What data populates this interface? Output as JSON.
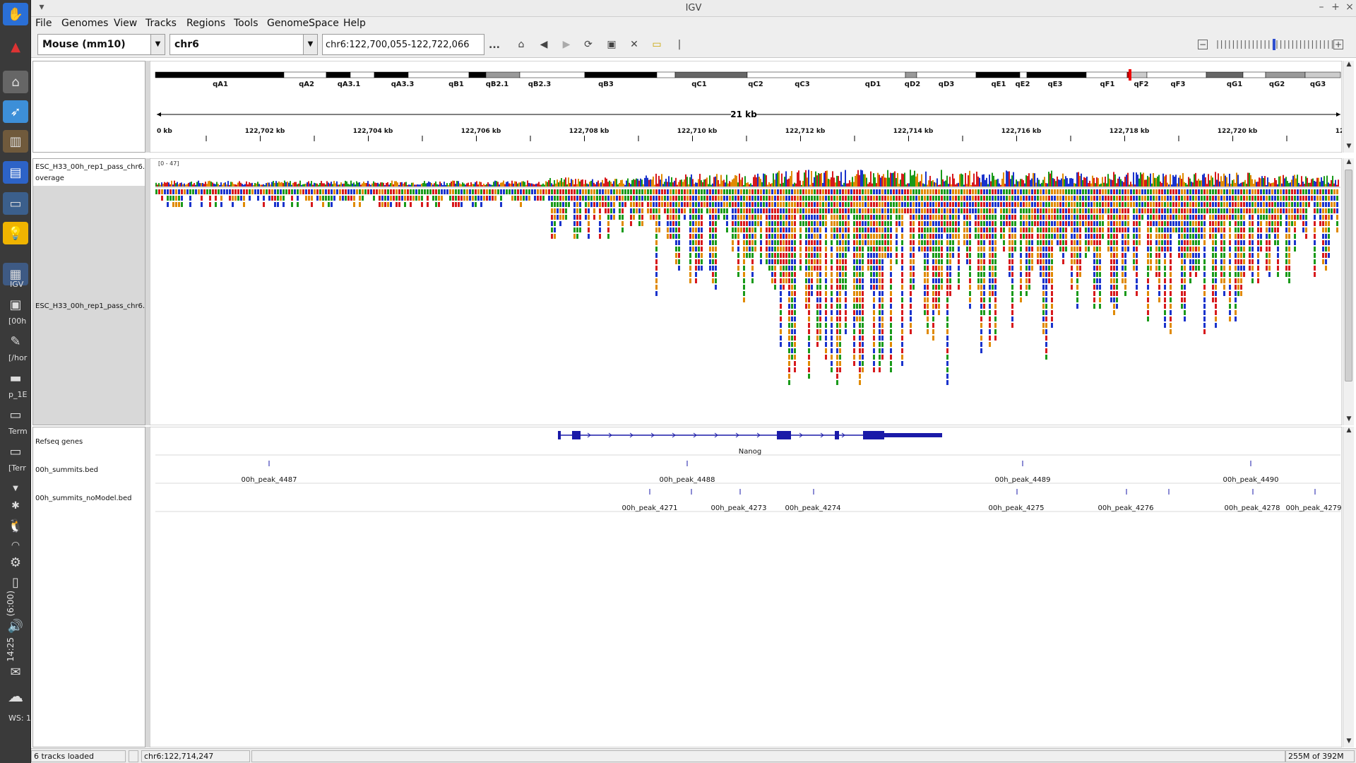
{
  "window": {
    "title": "IGV"
  },
  "menu": [
    "File",
    "Genomes",
    "View",
    "Tracks",
    "Regions",
    "Tools",
    "GenomeSpace",
    "Help"
  ],
  "toolbar": {
    "genome": "Mouse (mm10)",
    "chromosome": "chr6",
    "locus": "chr6:122,700,055-122,722,066",
    "more_label": "..."
  },
  "ideogram": {
    "bands": [
      "qA1",
      "qA2",
      "qA3.1",
      "qA3.3",
      "qB1",
      "qB2.1",
      "qB2.3",
      "qB3",
      "qC1",
      "qC2",
      "qC3",
      "qD1",
      "qD2",
      "qD3",
      "qE1",
      "qE2",
      "qE3",
      "qF1",
      "qF2",
      "qF3",
      "qG1",
      "qG2",
      "qG3"
    ]
  },
  "ruler": {
    "span_label": "21 kb",
    "tick_labels": [
      "0 kb",
      "122,702 kb",
      "122,704 kb",
      "122,706 kb",
      "122,708 kb",
      "122,710 kb",
      "122,712 kb",
      "122,714 kb",
      "122,716 kb",
      "122,718 kb",
      "122,720 kb",
      "122,7"
    ]
  },
  "data_tracks": {
    "coverage_name_line1": "ESC_H33_00h_rep1_pass_chr6.",
    "coverage_name_line2": "overage",
    "coverage_range": "[0 - 47]",
    "alignment_name": "ESC_H33_00h_rep1_pass_chr6."
  },
  "feature_tracks": {
    "refseq_name": "Refseq genes",
    "gene_name": "Nanog",
    "summits_name": "00h_summits.bed",
    "summits": [
      "00h_peak_4487",
      "00h_peak_4488",
      "00h_peak_4489",
      "00h_peak_4490"
    ],
    "nomodel_name": "00h_summits_noModel.bed",
    "nomodel": [
      "00h_peak_4271",
      "00h_peak_4273",
      "00h_peak_4274",
      "00h_peak_4275",
      "00h_peak_4276",
      "00h_peak_4278",
      "00h_peak_4279"
    ]
  },
  "status": {
    "tracks_loaded": "6 tracks loaded",
    "position": "chr6:122,714,247",
    "memory": "255M of 392M"
  },
  "dock": {
    "labels": [
      "IGV",
      "[00h",
      "[/hor",
      "p_1E",
      "Term",
      "[Terr",
      "WS: 1"
    ],
    "clock": "14:25",
    "battery": "(6:00)"
  },
  "colors": {
    "coverage": [
      "#d7191c",
      "#1a33cc",
      "#1a9a1a",
      "#e08a00"
    ],
    "feature": "#1a1aa8"
  }
}
